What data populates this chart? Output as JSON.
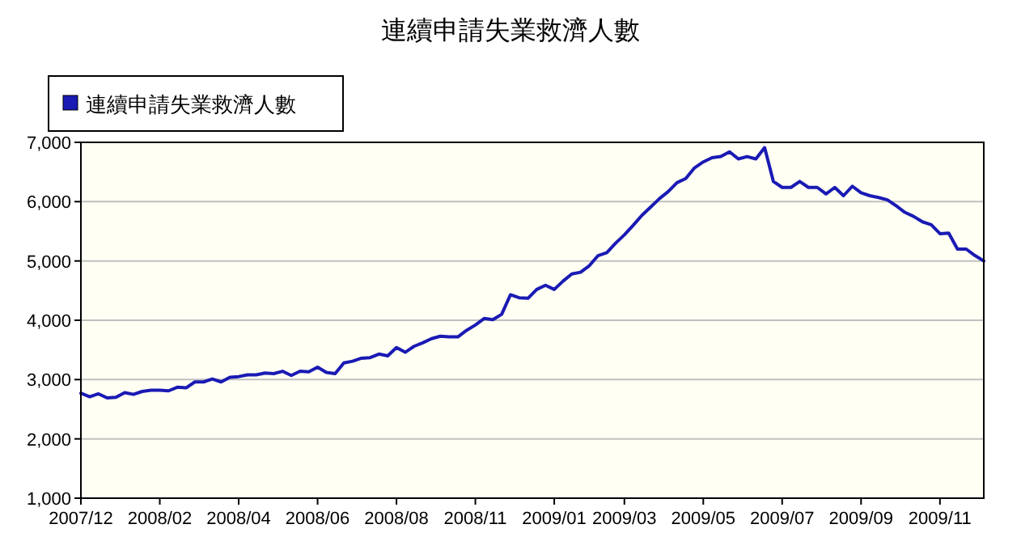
{
  "chart_data": {
    "type": "line",
    "title": "連續申請失業救濟人數",
    "categories": [
      "2007/12",
      null,
      null,
      null,
      null,
      null,
      null,
      null,
      null,
      "2008/02",
      null,
      null,
      null,
      null,
      null,
      null,
      null,
      null,
      "2008/04",
      null,
      null,
      null,
      null,
      null,
      null,
      null,
      null,
      "2008/06",
      null,
      null,
      null,
      null,
      null,
      null,
      null,
      null,
      "2008/08",
      null,
      null,
      null,
      null,
      null,
      null,
      null,
      null,
      "2008/11",
      null,
      null,
      null,
      null,
      null,
      null,
      null,
      null,
      "2009/01",
      null,
      null,
      null,
      null,
      null,
      null,
      null,
      "2009/03",
      null,
      null,
      null,
      null,
      null,
      null,
      null,
      null,
      "2009/05",
      null,
      null,
      null,
      null,
      null,
      null,
      null,
      null,
      "2009/07",
      null,
      null,
      null,
      null,
      null,
      null,
      null,
      null,
      "2009/09",
      null,
      null,
      null,
      null,
      null,
      null,
      null,
      null,
      "2009/11",
      null,
      null,
      null,
      null,
      null
    ],
    "series": [
      {
        "name": "連續申請失業救濟人數",
        "color": "#1a1ab4",
        "values": [
          2770,
          2710,
          2760,
          2690,
          2700,
          2780,
          2750,
          2800,
          2820,
          2820,
          2810,
          2870,
          2860,
          2960,
          2960,
          3010,
          2960,
          3040,
          3050,
          3080,
          3080,
          3110,
          3100,
          3140,
          3070,
          3140,
          3130,
          3210,
          3120,
          3100,
          3280,
          3310,
          3360,
          3370,
          3430,
          3400,
          3540,
          3460,
          3560,
          3620,
          3690,
          3730,
          3720,
          3720,
          3830,
          3920,
          4030,
          4010,
          4100,
          4430,
          4380,
          4370,
          4520,
          4590,
          4520,
          4660,
          4780,
          4810,
          4920,
          5090,
          5140,
          5300,
          5440,
          5600,
          5770,
          5910,
          6050,
          6170,
          6320,
          6390,
          6570,
          6670,
          6740,
          6760,
          6840,
          6720,
          6760,
          6720,
          6910,
          6340,
          6240,
          6240,
          6340,
          6240,
          6240,
          6130,
          6240,
          6100,
          6260,
          6150,
          6100,
          6070,
          6030,
          5930,
          5820,
          5750,
          5660,
          5610,
          5460,
          5470,
          5200,
          5200,
          5090,
          5000
        ]
      }
    ],
    "ylim": [
      1000,
      7000
    ],
    "yticks": [
      {
        "value": 1000,
        "label": "1,000"
      },
      {
        "value": 2000,
        "label": "2,000"
      },
      {
        "value": 3000,
        "label": "3,000"
      },
      {
        "value": 4000,
        "label": "4,000"
      },
      {
        "value": 5000,
        "label": "5,000"
      },
      {
        "value": 6000,
        "label": "6,000"
      },
      {
        "value": 7000,
        "label": "7,000"
      }
    ],
    "grid": "y",
    "legend": "top left",
    "marker": "none",
    "line_style": "solid"
  }
}
